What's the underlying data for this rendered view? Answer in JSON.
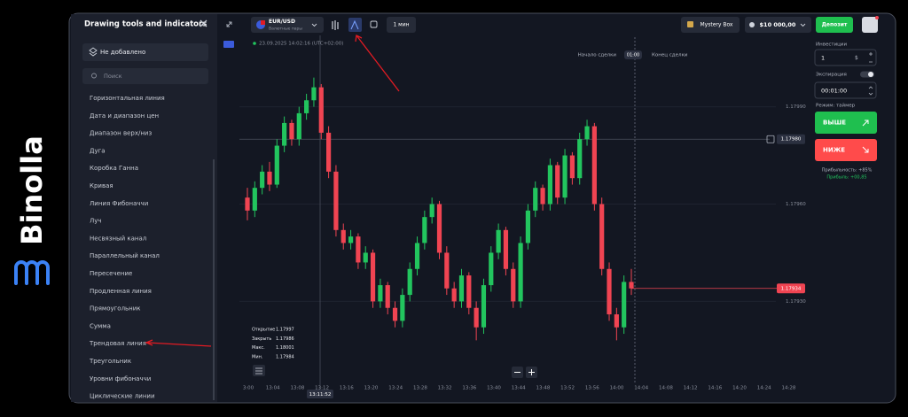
{
  "logo": "Binolla",
  "sidebar": {
    "title": "Drawing tools and indicators",
    "none_added": "Не добавлено",
    "search": "Поиск",
    "items": [
      "Горизонтальная линия",
      "Дата и диапазон цен",
      "Диапазон верх/низ",
      "Дуга",
      "Коробка Ганна",
      "Кривая",
      "Линия Фибоначчи",
      "Луч",
      "Несвязный канал",
      "Параллельный канал",
      "Пересечение",
      "Продленная линия",
      "Прямоугольник",
      "Сумма",
      "Трендовая линия",
      "Треугольник",
      "Уровни фибоначчи",
      "Циклические линии"
    ]
  },
  "topbar": {
    "pair": "EUR/USD",
    "pair_type": "Валютные пары",
    "timeframe": "1 мин",
    "mystery": "Mystery Box",
    "balance": "$10 000,00",
    "deposit": "Депозит"
  },
  "chart_data": {
    "type": "candlestick",
    "datetime": "23.09.2025 14:02:16 (UTC+02:00)",
    "trade_start": "Начало сделки",
    "trade_duration": "01:00",
    "trade_end": "Конец сделки",
    "ylim": [
      1.17905,
      1.18012
    ],
    "yticks": [
      {
        "value": 1.1799,
        "label": "1.17990"
      },
      {
        "value": 1.1796,
        "label": "1.17960"
      },
      {
        "value": 1.1793,
        "label": "1.17930"
      }
    ],
    "crosshair_price": {
      "value": 1.1798,
      "label": "1.17980"
    },
    "crosshair_time": "13:11:52",
    "current_price": 1.17934,
    "xticks": [
      "3:00",
      "13:04",
      "13:08",
      "13:12",
      "13:16",
      "13:20",
      "13:24",
      "13:28",
      "13:32",
      "13:36",
      "13:40",
      "13:44",
      "13:48",
      "13:52",
      "13:56",
      "14:00",
      "14:04",
      "14:08",
      "14:12",
      "14:16",
      "14:20",
      "14:24",
      "14:28"
    ],
    "open": [
      1.17962,
      1.17958,
      1.17965,
      1.1797,
      1.17966,
      1.17978,
      1.17985,
      1.1798,
      1.17988,
      1.17992,
      1.17996,
      1.17982,
      1.1797,
      1.17952,
      1.17948,
      1.1795,
      1.17942,
      1.17945,
      1.1793,
      1.17935,
      1.17928,
      1.17924,
      1.17932,
      1.1794,
      1.17948,
      1.17956,
      1.1796,
      1.17945,
      1.17934,
      1.1793,
      1.17938,
      1.17928,
      1.17922,
      1.17935,
      1.17945,
      1.17952,
      1.1794,
      1.1793,
      1.17948,
      1.17958,
      1.17965,
      1.1796,
      1.17972,
      1.17962,
      1.17975,
      1.17968,
      1.1798,
      1.17984,
      1.1796,
      1.1794,
      1.17926,
      1.17922,
      1.17936
    ],
    "high": [
      1.17965,
      1.17967,
      1.17972,
      1.17973,
      1.1798,
      1.17987,
      1.17986,
      1.1799,
      1.17994,
      1.17999,
      1.17997,
      1.17984,
      1.17972,
      1.17954,
      1.17952,
      1.17951,
      1.17947,
      1.17946,
      1.17937,
      1.17936,
      1.1793,
      1.17934,
      1.17942,
      1.1795,
      1.17958,
      1.17962,
      1.17961,
      1.17947,
      1.17936,
      1.1794,
      1.17939,
      1.1793,
      1.17937,
      1.17947,
      1.17954,
      1.17953,
      1.17942,
      1.1795,
      1.1796,
      1.17967,
      1.17966,
      1.17974,
      1.17973,
      1.17977,
      1.17976,
      1.17982,
      1.17986,
      1.17985,
      1.17962,
      1.17942,
      1.17928,
      1.17938,
      1.1794
    ],
    "low": [
      1.17955,
      1.17956,
      1.17963,
      1.17964,
      1.17965,
      1.17976,
      1.17978,
      1.17978,
      1.17986,
      1.1799,
      1.1798,
      1.17968,
      1.1795,
      1.17946,
      1.17946,
      1.1794,
      1.1794,
      1.17928,
      1.17928,
      1.17926,
      1.17922,
      1.17922,
      1.1793,
      1.17938,
      1.17946,
      1.17954,
      1.17943,
      1.17932,
      1.17928,
      1.17928,
      1.17926,
      1.17918,
      1.1792,
      1.17933,
      1.17943,
      1.17938,
      1.17928,
      1.17928,
      1.17946,
      1.17956,
      1.17958,
      1.17958,
      1.1796,
      1.1796,
      1.17966,
      1.17966,
      1.17978,
      1.17958,
      1.17938,
      1.17924,
      1.17918,
      1.1792,
      1.17932
    ],
    "close": [
      1.17958,
      1.17965,
      1.1797,
      1.17966,
      1.17978,
      1.17985,
      1.1798,
      1.17988,
      1.17992,
      1.17996,
      1.17982,
      1.1797,
      1.17952,
      1.17948,
      1.1795,
      1.17942,
      1.17945,
      1.1793,
      1.17935,
      1.17928,
      1.17924,
      1.17932,
      1.1794,
      1.17948,
      1.17956,
      1.1796,
      1.17945,
      1.17934,
      1.1793,
      1.17938,
      1.17928,
      1.17922,
      1.17935,
      1.17945,
      1.17952,
      1.1794,
      1.1793,
      1.17948,
      1.17958,
      1.17965,
      1.1796,
      1.17972,
      1.17962,
      1.17975,
      1.17968,
      1.1798,
      1.17984,
      1.1796,
      1.1794,
      1.17926,
      1.17922,
      1.17936,
      1.17934
    ],
    "up_color": "#22c55e",
    "down_color": "#f04452",
    "info": [
      [
        "Открытие",
        "1.17997"
      ],
      [
        "Закрыть",
        "1.17986"
      ],
      [
        "Макс.",
        "1.18001"
      ],
      [
        "Мин.",
        "1.17984"
      ]
    ]
  },
  "panel": {
    "investment": "Инвестиции",
    "amount": "1",
    "currency": "$",
    "expiration": "Экспирация",
    "time": "00:01:00",
    "mode": "Режим: таймер",
    "higher": "ВЫШЕ",
    "lower": "НИЖЕ",
    "profitability": "Прибыльность: +85%",
    "profit": "Прибыль: +00,85"
  }
}
